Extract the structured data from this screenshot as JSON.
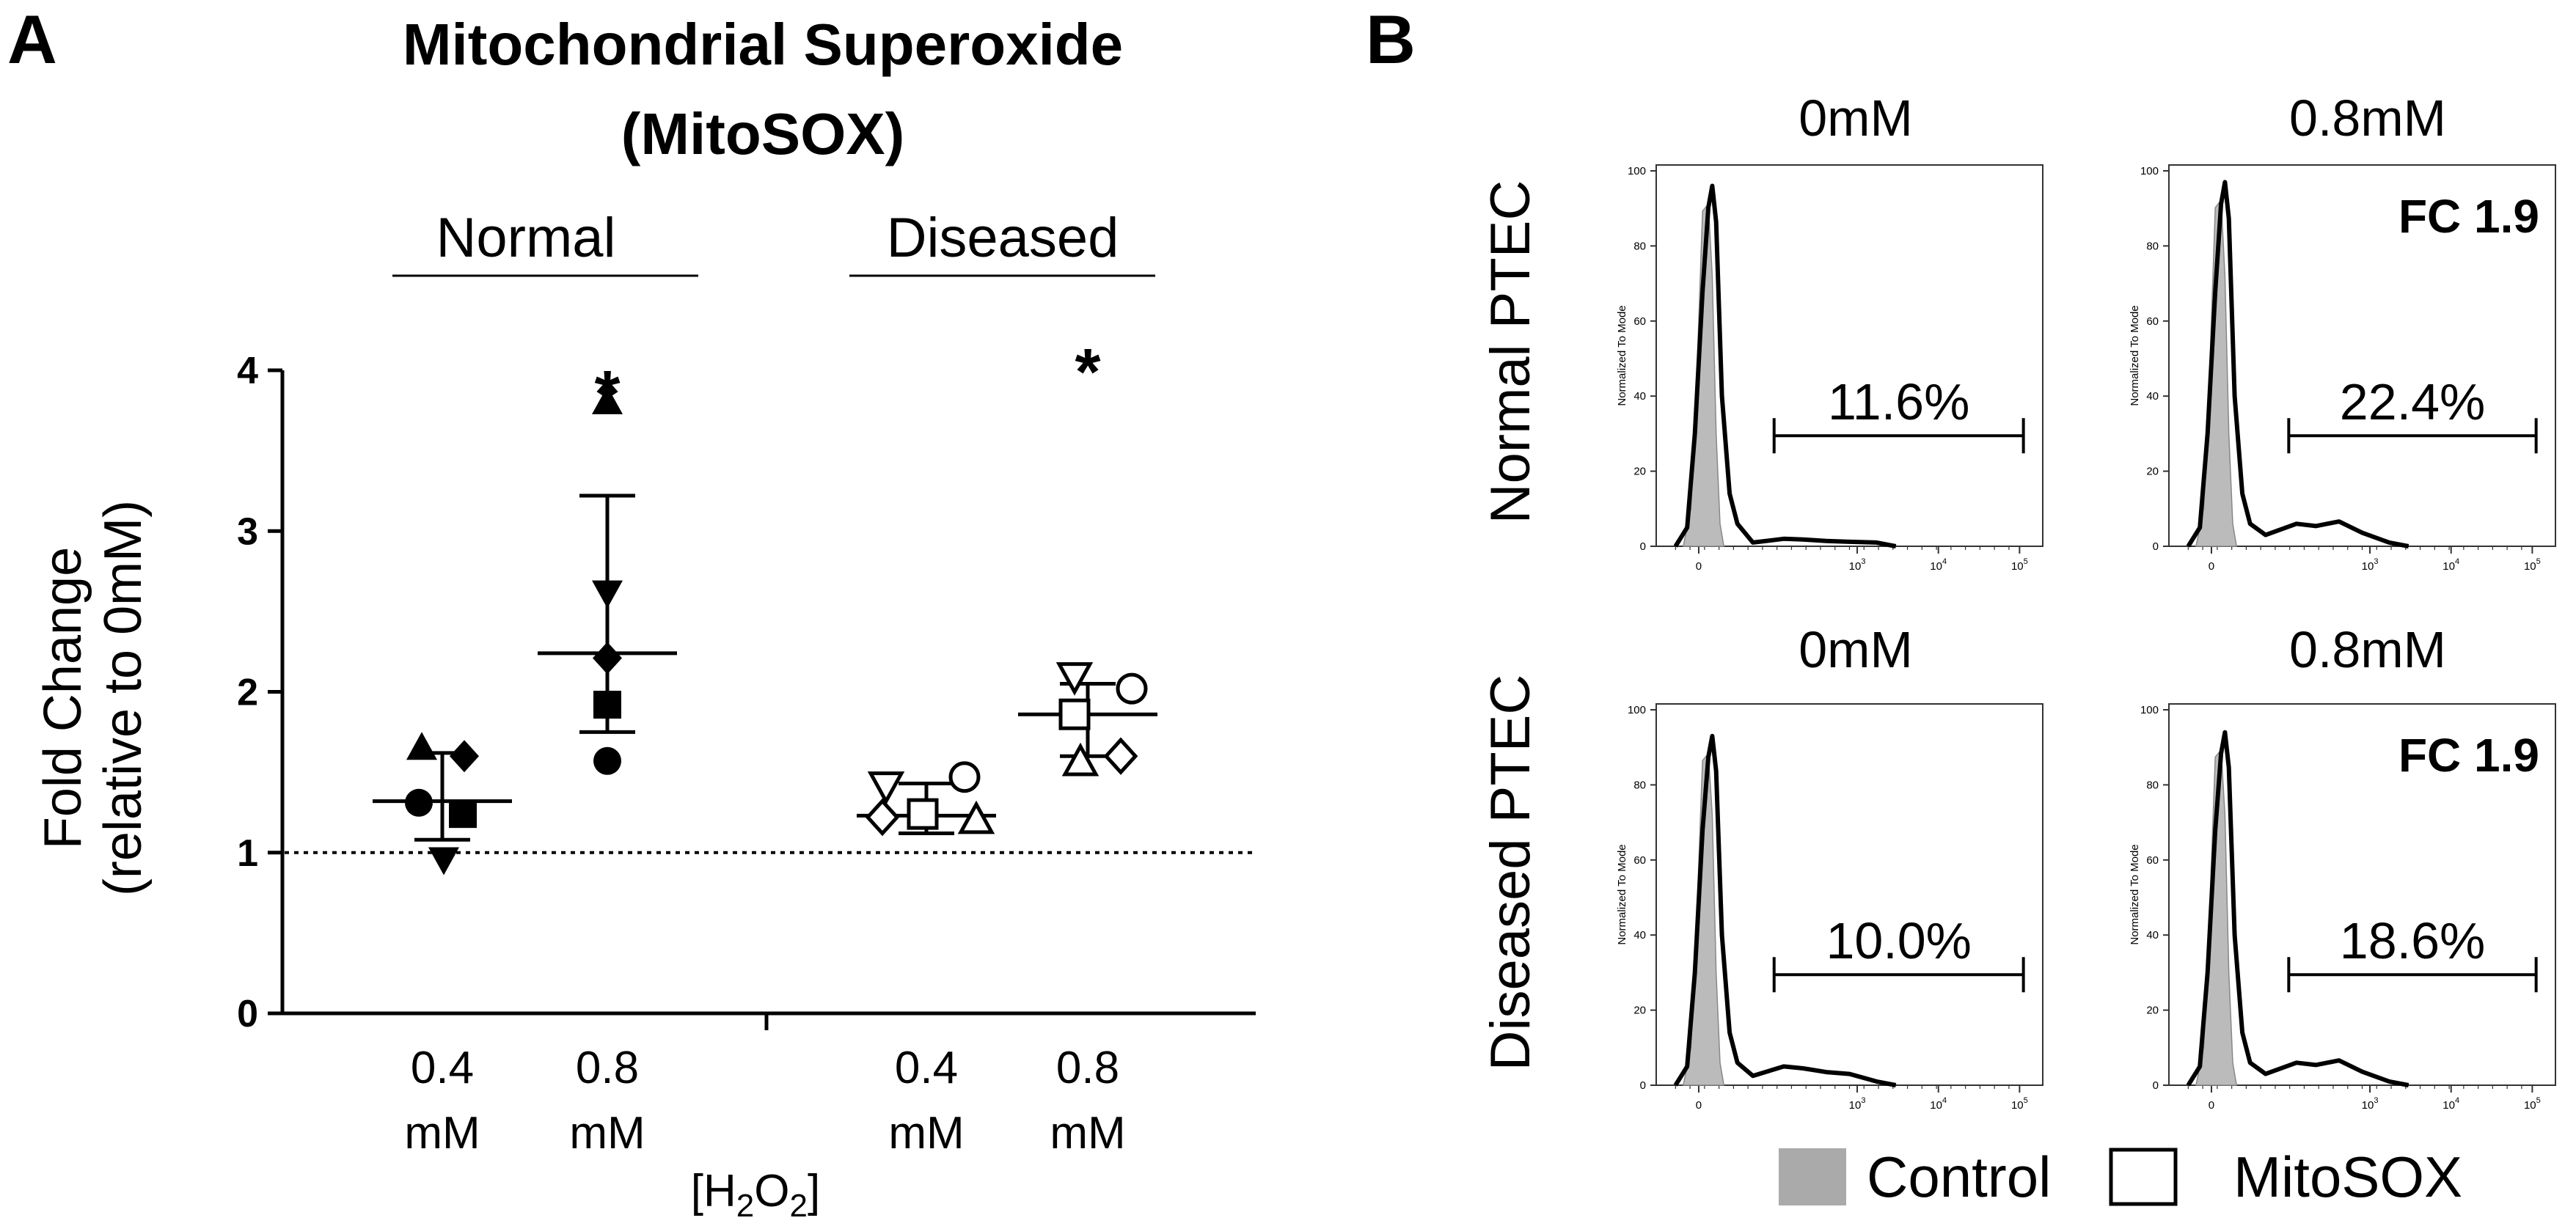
{
  "panels": {
    "a": "A",
    "b": "B"
  },
  "chart_data": [
    {
      "type": "scatter",
      "title": "Mitochondrial Superoxide",
      "subtitle": "(MitoSOX)",
      "ylabel_line1": "Fold Change",
      "ylabel_line2": "(relative to 0mM)",
      "ylim": [
        0,
        4
      ],
      "yticks": [
        "0",
        "1",
        "2",
        "3",
        "4"
      ],
      "reference_line": 1,
      "x_axis_label": "[H2O2]",
      "x_axis_label_parts": {
        "open": "[H",
        "sub1": "2",
        "mid": "O",
        "sub2": "2",
        "close": "]"
      },
      "groups": [
        {
          "label": "Normal",
          "categories": [
            "0.4",
            "0.8"
          ]
        },
        {
          "label": "Diseased",
          "categories": [
            "0.4",
            "0.8"
          ]
        }
      ],
      "category_unit": "mM",
      "series": [
        {
          "name": "Normal 0.4 mM",
          "group": "Normal",
          "dose": "0.4",
          "mean": 1.32,
          "sd_low": 1.08,
          "sd_high": 1.62,
          "significant": false,
          "points": [
            {
              "marker": "circle",
              "filled": true,
              "value": 1.31
            },
            {
              "marker": "square",
              "filled": true,
              "value": 1.24
            },
            {
              "marker": "triangle-up",
              "filled": true,
              "value": 1.65
            },
            {
              "marker": "triangle-down",
              "filled": true,
              "value": 0.96
            },
            {
              "marker": "diamond",
              "filled": true,
              "value": 1.6
            }
          ]
        },
        {
          "name": "Normal 0.8 mM",
          "group": "Normal",
          "dose": "0.8",
          "mean": 2.24,
          "sd_low": 1.75,
          "sd_high": 3.22,
          "significant": true,
          "points": [
            {
              "marker": "circle",
              "filled": true,
              "value": 1.57
            },
            {
              "marker": "square",
              "filled": true,
              "value": 1.92
            },
            {
              "marker": "triangle-up",
              "filled": true,
              "value": 3.8
            },
            {
              "marker": "triangle-down",
              "filled": true,
              "value": 2.62
            },
            {
              "marker": "diamond",
              "filled": true,
              "value": 2.21
            }
          ]
        },
        {
          "name": "Diseased 0.4 mM",
          "group": "Diseased",
          "dose": "0.4",
          "mean": 1.23,
          "sd_low": 1.12,
          "sd_high": 1.43,
          "significant": false,
          "points": [
            {
              "marker": "circle",
              "filled": false,
              "value": 1.47
            },
            {
              "marker": "square",
              "filled": false,
              "value": 1.24
            },
            {
              "marker": "triangle-up",
              "filled": false,
              "value": 1.2
            },
            {
              "marker": "triangle-down",
              "filled": false,
              "value": 1.42
            },
            {
              "marker": "diamond",
              "filled": false,
              "value": 1.22
            }
          ]
        },
        {
          "name": "Diseased 0.8 mM",
          "group": "Diseased",
          "dose": "0.8",
          "mean": 1.86,
          "sd_low": 1.6,
          "sd_high": 2.05,
          "significant": true,
          "points": [
            {
              "marker": "circle",
              "filled": false,
              "value": 2.02
            },
            {
              "marker": "square",
              "filled": false,
              "value": 1.86
            },
            {
              "marker": "triangle-up",
              "filled": false,
              "value": 1.56
            },
            {
              "marker": "triangle-down",
              "filled": false,
              "value": 2.1
            },
            {
              "marker": "diamond",
              "filled": false,
              "value": 1.6
            }
          ]
        }
      ],
      "significance_mark": "*"
    },
    {
      "type": "histogram",
      "row_labels": [
        "Normal PTEC",
        "Diseased PTEC"
      ],
      "column_labels": [
        "0mM",
        "0.8mM"
      ],
      "y_axis_label": "Normalized To Mode",
      "yticks": [
        "0",
        "20",
        "40",
        "60",
        "80",
        "100"
      ],
      "xticks": [
        {
          "base": "0",
          "exp": ""
        },
        {
          "base": "10",
          "exp": "3"
        },
        {
          "base": "10",
          "exp": "4"
        },
        {
          "base": "10",
          "exp": "5"
        }
      ],
      "histograms": [
        {
          "row": "Normal PTEC",
          "dose": "0mM",
          "gate_percent": "11.6%",
          "fold_change": "",
          "peak": 96,
          "tail": 2
        },
        {
          "row": "Normal PTEC",
          "dose": "0.8mM",
          "gate_percent": "22.4%",
          "fold_change": "FC 1.9",
          "peak": 97,
          "tail": 6
        },
        {
          "row": "Diseased PTEC",
          "dose": "0mM",
          "gate_percent": "10.0%",
          "fold_change": "",
          "peak": 93,
          "tail": 5
        },
        {
          "row": "Diseased PTEC",
          "dose": "0.8mM",
          "gate_percent": "18.6%",
          "fold_change": "FC 1.9",
          "peak": 94,
          "tail": 6
        }
      ],
      "legend": [
        {
          "label": "Control",
          "style": "filled",
          "color": "#aaaaaa"
        },
        {
          "label": "MitoSOX",
          "style": "outline",
          "color": "#000000"
        }
      ]
    }
  ]
}
